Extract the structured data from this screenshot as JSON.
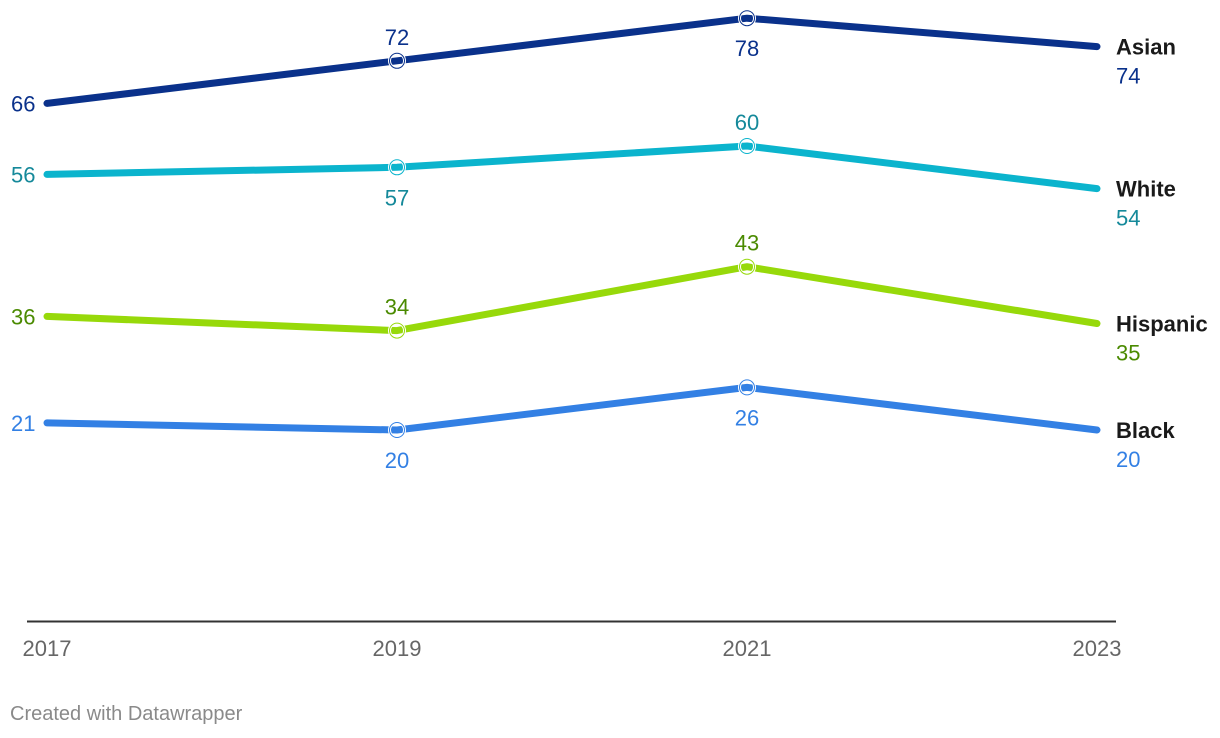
{
  "chart_data": {
    "type": "line",
    "title": "",
    "xlabel": "",
    "ylabel": "",
    "ylim": [
      0,
      90
    ],
    "x": [
      "2017",
      "2019",
      "2021",
      "2023"
    ],
    "series": [
      {
        "name": "Asian",
        "values": [
          66,
          72,
          78,
          74
        ],
        "color": "#0a318b",
        "label_color": "#0a318b"
      },
      {
        "name": "White",
        "values": [
          56,
          57,
          60,
          54
        ],
        "color": "#0bb4cd",
        "label_color": "#15899a"
      },
      {
        "name": "Hispanic",
        "values": [
          36,
          34,
          43,
          35
        ],
        "color": "#97d90a",
        "label_color": "#4a8a00"
      },
      {
        "name": "Black",
        "values": [
          21,
          20,
          26,
          20
        ],
        "color": "#3380e4",
        "label_color": "#3380e4"
      }
    ]
  },
  "footer": "Created with Datawrapper"
}
